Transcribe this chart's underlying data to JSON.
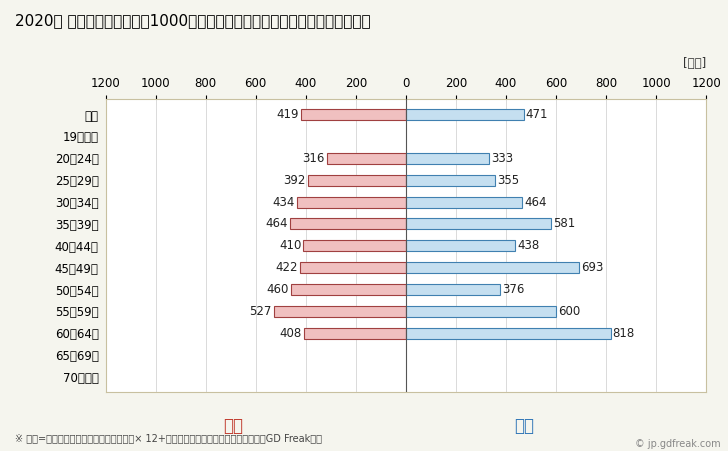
{
  "title": "2020年 民間企業（従業者数1000人以上）フルタイム労働者の男女別平均年収",
  "subtitle": "※ 年収=「きまって支給する現金給与額」× 12+「年間賞与その他特別給与額」としてGD Freak推計",
  "unit_label": "[万円]",
  "categories": [
    "全体",
    "19歳以下",
    "20～24歳",
    "25～29歳",
    "30～34歳",
    "35～39歳",
    "40～44歳",
    "45～49歳",
    "50～54歳",
    "55～59歳",
    "60～64歳",
    "65～69歳",
    "70歳以上"
  ],
  "female_values": [
    419,
    0,
    316,
    392,
    434,
    464,
    410,
    422,
    460,
    527,
    408,
    0,
    0
  ],
  "male_values": [
    471,
    0,
    333,
    355,
    464,
    581,
    438,
    693,
    376,
    600,
    818,
    0,
    0
  ],
  "female_color": "#f0c0c0",
  "male_color": "#c5dff0",
  "female_edge_color": "#a04040",
  "male_edge_color": "#4080b0",
  "female_label": "女性",
  "male_label": "男性",
  "female_label_color": "#c0392b",
  "male_label_color": "#2e75b6",
  "xlim": 1200,
  "background_color": "#f5f5ee",
  "plot_background": "#ffffff",
  "title_fontsize": 11,
  "tick_fontsize": 8.5,
  "bar_label_fontsize": 8.5,
  "legend_fontsize": 12,
  "watermark": "© jp.gdfreak.com"
}
